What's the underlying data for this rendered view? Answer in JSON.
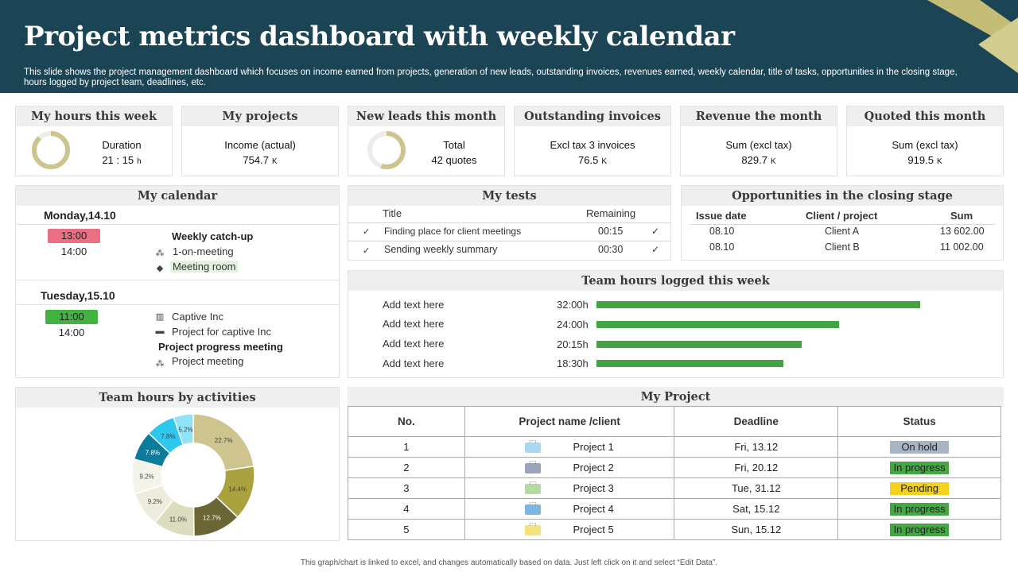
{
  "header": {
    "title": "Project metrics dashboard with weekly calendar",
    "description": "This slide shows the project management dashboard which focuses on income earned from projects, generation of new leads, outstanding invoices, revenues earned, weekly calendar, title of tasks, opportunities in the closing stage, hours logged by project team, deadlines, etc."
  },
  "kpis": {
    "hours": {
      "title": "My hours this week",
      "label": "Duration",
      "value": "21 : 15",
      "unit": "h",
      "ring_fraction": 0.88
    },
    "projects": {
      "title": "My projects",
      "label": "Income (actual)",
      "value": "754.7",
      "unit": "K"
    },
    "leads": {
      "title": "New leads this month",
      "label": "Total",
      "value": "42  quotes",
      "ring_fraction": 0.55
    },
    "invoices": {
      "title": "Outstanding invoices",
      "label": "Excl tax 3 invoices",
      "value": "76.5",
      "unit": "K"
    },
    "revenue": {
      "title": "Revenue the month",
      "label": "Sum (excl tax)",
      "value": "829.7",
      "unit": "K"
    },
    "quoted": {
      "title": "Quoted this month",
      "label": "Sum (excl tax)",
      "value": "919.5",
      "unit": "K"
    }
  },
  "calendar": {
    "title": "My calendar",
    "day1": {
      "label": "Monday,14.10",
      "start": "13:00",
      "end": "14:00",
      "event_title": "Weekly catch-up",
      "item1": "1-on-meeting",
      "item2": "Meeting room"
    },
    "day2": {
      "label": "Tuesday,15.10",
      "start": "11:00",
      "end": "14:00",
      "item1": "Captive  Inc",
      "item2": "Project for captive Inc",
      "event_title": "Project progress meeting",
      "item3": "Project meeting"
    }
  },
  "tests": {
    "title": "My tests",
    "col_title": "Title",
    "col_remaining": "Remaining",
    "rows": [
      {
        "title": "Finding place for client meetings",
        "remaining": "00:15"
      },
      {
        "title": "Sending weekly summary",
        "remaining": "00:30"
      }
    ]
  },
  "opportunities": {
    "title": "Opportunities in the closing stage",
    "col_date": "Issue date",
    "col_client": "Client / project",
    "col_sum": "Sum",
    "rows": [
      {
        "date": "08.10",
        "client": "Client A",
        "sum": "13 602.00"
      },
      {
        "date": "08.10",
        "client": "Client B",
        "sum": "11 002.00"
      }
    ]
  },
  "team_hours": {
    "title": "Team hours logged this week",
    "max_hours": 40,
    "rows": [
      {
        "label": "Add text here",
        "hours": "32:00h",
        "value": 32.0
      },
      {
        "label": "Add text here",
        "hours": "24:00h",
        "value": 24.0
      },
      {
        "label": "Add text here",
        "hours": "20:15h",
        "value": 20.25
      },
      {
        "label": "Add text here",
        "hours": "18:30h",
        "value": 18.5
      }
    ]
  },
  "activities": {
    "title": "Team hours by activities",
    "chart_data": {
      "type": "pie",
      "labels": [
        "22.7%",
        "14.4%",
        "12.7%",
        "11.0%",
        "9.2%",
        "9.2%",
        "7.8%",
        "7.8%",
        "5.2%"
      ],
      "values": [
        22.7,
        14.4,
        12.7,
        11.0,
        9.2,
        9.2,
        7.8,
        7.8,
        5.2
      ],
      "colors": [
        "#cdc48e",
        "#aaa23f",
        "#6b6634",
        "#dedcbf",
        "#eeecdc",
        "#f5f4ea",
        "#0c7c9c",
        "#2ec8ee",
        "#8ee4f6"
      ]
    }
  },
  "my_project": {
    "title": "My Project",
    "col_no": "No.",
    "col_name": "Project name /client",
    "col_deadline": "Deadline",
    "col_status": "Status",
    "rows": [
      {
        "no": "1",
        "name": "Project  1",
        "deadline": "Fri, 13.12",
        "status": "On hold",
        "status_color": "#a8b4c4",
        "icon_color": "#a8d8f2"
      },
      {
        "no": "2",
        "name": "Project  2",
        "deadline": "Fri, 20.12",
        "status": "In progress",
        "status_color": "#43a743",
        "icon_color": "#9aa4bc"
      },
      {
        "no": "3",
        "name": "Project  3",
        "deadline": "Tue, 31.12",
        "status": "Pending",
        "status_color": "#f2d21c",
        "icon_color": "#b4dca2"
      },
      {
        "no": "4",
        "name": "Project  4",
        "deadline": "Sat, 15.12",
        "status": "In progress",
        "status_color": "#43a743",
        "icon_color": "#7cb6e2"
      },
      {
        "no": "5",
        "name": "Project  5",
        "deadline": "Sun, 15.12",
        "status": "In progress",
        "status_color": "#43a743",
        "icon_color": "#f6e27a"
      }
    ]
  },
  "footer": "This graph/chart is linked to excel, and changes automatically based on data. Just left click on it and select “Edit Data”."
}
